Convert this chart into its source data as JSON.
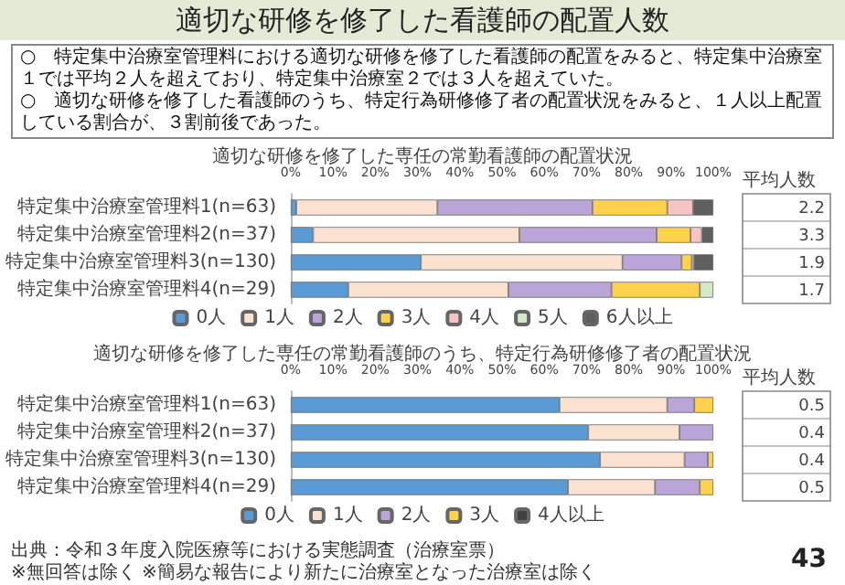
{
  "chart_data": [
    {
      "type": "bar",
      "orientation": "horizontal",
      "stacked": true,
      "title": "適切な研修を修了した専任の常勤看護師の配置状況",
      "categories": [
        "特定集中治療室管理料1(n=63)",
        "特定集中治療室管理料2(n=37)",
        "特定集中治療室管理料3(n=130)",
        "特定集中治療室管理料4(n=29)"
      ],
      "xlim": [
        0,
        100
      ],
      "xticks": [
        {
          "value": 0,
          "label": "0%"
        },
        {
          "value": 10,
          "label": "10%"
        },
        {
          "value": 20,
          "label": "20%"
        },
        {
          "value": 30,
          "label": "30%"
        },
        {
          "value": 40,
          "label": "40%"
        },
        {
          "value": 50,
          "label": "50%"
        },
        {
          "value": 60,
          "label": "60%"
        },
        {
          "value": 70,
          "label": "70%"
        },
        {
          "value": 80,
          "label": "80%"
        },
        {
          "value": 90,
          "label": "90%"
        },
        {
          "value": 100,
          "label": "100%"
        }
      ],
      "legend": "bottom",
      "series": [
        {
          "name": "0人",
          "color": "#5b9bd5",
          "values": [
            1.3,
            5.3,
            30.8,
            13.6
          ]
        },
        {
          "name": "1人",
          "color": "#fbe2d0",
          "values": [
            33.4,
            48.8,
            47.7,
            37.9
          ]
        },
        {
          "name": "2人",
          "color": "#b9a5d8",
          "values": [
            36.7,
            32.5,
            14.0,
            24.4
          ]
        },
        {
          "name": "3人",
          "color": "#ffd24d",
          "values": [
            17.7,
            8.0,
            2.4,
            20.9
          ]
        },
        {
          "name": "4人",
          "color": "#f6c4c4",
          "values": [
            6.1,
            2.7,
            0.5,
            0
          ]
        },
        {
          "name": "5人",
          "color": "#d3e8c6",
          "values": [
            0,
            0,
            0,
            3.2
          ]
        },
        {
          "name": "6人以上",
          "color": "#5f5f5f",
          "values": [
            4.8,
            2.7,
            4.6,
            0
          ]
        }
      ],
      "annotations": [
        "適切な研修を修了した看護師の配置人数",
        "○　特定集中治療室管理料における適切な研修を修了した看護師の配置をみると、特定集中治療室１では平均２人を超えており、特定集中治療室２では３人を超えていた。",
        "○　適切な研修を修了した看護師のうち、特定行為研修修了者の配置状況をみると、１人以上配置している割合が、３割前後であった。",
        "平均人数",
        "2.2",
        "3.3",
        "1.9",
        "1.7"
      ]
    },
    {
      "type": "bar",
      "orientation": "horizontal",
      "stacked": true,
      "title": "適切な研修を修了した専任の常勤看護師のうち、特定行為研修修了者の配置状況",
      "categories": [
        "特定集中治療室管理料1(n=63)",
        "特定集中治療室管理料2(n=37)",
        "特定集中治療室管理料3(n=130)",
        "特定集中治療室管理料4(n=29)"
      ],
      "xlim": [
        0,
        100
      ],
      "xticks": [
        {
          "value": 0,
          "label": "0%"
        },
        {
          "value": 10,
          "label": "10%"
        },
        {
          "value": 20,
          "label": "20%"
        },
        {
          "value": 30,
          "label": "30%"
        },
        {
          "value": 40,
          "label": "40%"
        },
        {
          "value": 50,
          "label": "50%"
        },
        {
          "value": 60,
          "label": "60%"
        },
        {
          "value": 70,
          "label": "70%"
        },
        {
          "value": 80,
          "label": "80%"
        },
        {
          "value": 90,
          "label": "90%"
        },
        {
          "value": 100,
          "label": "100%"
        }
      ],
      "legend": "bottom",
      "series": [
        {
          "name": "0人",
          "color": "#5b9bd5",
          "values": [
            63.6,
            70.4,
            73.2,
            65.6
          ]
        },
        {
          "name": "1人",
          "color": "#fbe2d0",
          "values": [
            25.5,
            21.6,
            20.0,
            20.6
          ]
        },
        {
          "name": "2人",
          "color": "#b9a5d8",
          "values": [
            6.4,
            8.0,
            5.5,
            10.6
          ]
        },
        {
          "name": "3人",
          "color": "#ffd24d",
          "values": [
            4.5,
            0,
            1.3,
            3.2
          ]
        },
        {
          "name": "4人以上",
          "color": "#404040",
          "values": [
            0,
            0,
            0,
            0
          ]
        }
      ],
      "annotations": [
        "平均人数",
        "0.5",
        "0.4",
        "0.4",
        "0.5",
        "出典：令和３年度入院医療等における実態調査（治療室票）",
        "※無回答は除く ※簡易な報告により新たに治療室となった治療室は除く",
        "43"
      ]
    }
  ]
}
